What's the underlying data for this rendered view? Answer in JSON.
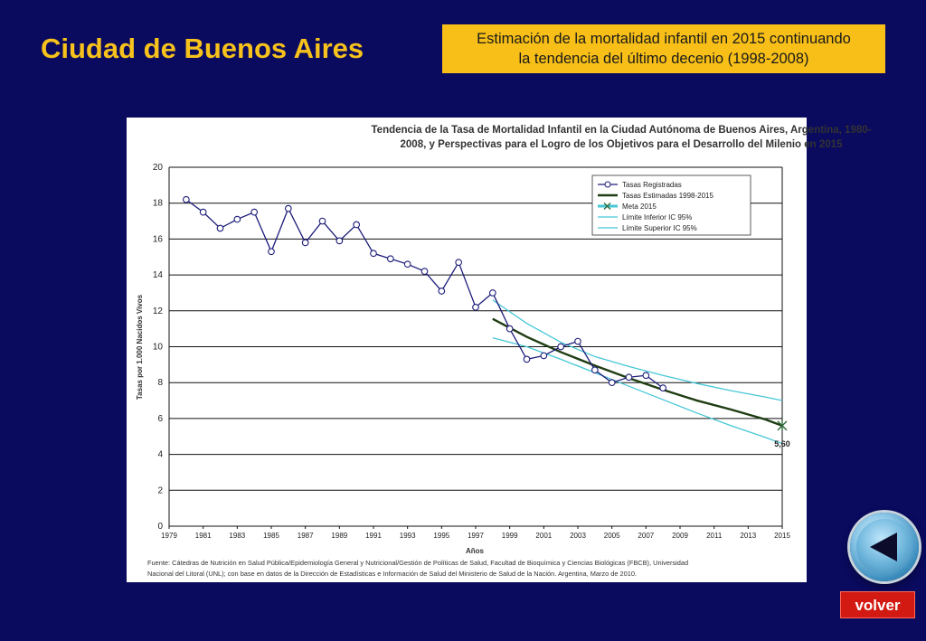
{
  "page": {
    "title": "Ciudad de Buenos Aires",
    "note_line1": "Estimación de la mortalidad infantil en 2015 continuando",
    "note_line2": "la tendencia del último decenio (1998-2008)",
    "back_icon": "triangle-left-icon",
    "volver_label": "volver",
    "colors": {
      "background": "#0a0a5e",
      "title": "#f6c21b",
      "note_bg": "#f7bf17",
      "volver_bg": "#d31a12"
    }
  },
  "chart_data": {
    "type": "line",
    "title_line1": "Tendencia de la Tasa de Mortalidad Infantil en la Ciudad Autónoma de Buenos Aires, Argentina, 1980-",
    "title_line2": "2008, y Perspectivas para el Logro de los Objetivos para el Desarrollo del Milenio en 2015",
    "xlabel": "Años",
    "ylabel": "Tasas por 1.000 Nacidos Vivos",
    "xlim": [
      1979,
      2015
    ],
    "ylim": [
      0,
      20
    ],
    "x_ticks": [
      "1979",
      "1981",
      "1983",
      "1985",
      "1987",
      "1989",
      "1991",
      "1993",
      "1995",
      "1997",
      "1999",
      "2001",
      "2003",
      "2005",
      "2007",
      "2009",
      "2011",
      "2013",
      "2015"
    ],
    "y_ticks": [
      "0",
      "2",
      "4",
      "6",
      "8",
      "10",
      "12",
      "14",
      "16",
      "18",
      "20"
    ],
    "grid": true,
    "legend_position": "top-right",
    "series": [
      {
        "name": "Tasas Registradas",
        "color": "#1c1c7a",
        "x": [
          1980,
          1981,
          1982,
          1983,
          1984,
          1985,
          1986,
          1987,
          1988,
          1989,
          1990,
          1991,
          1992,
          1993,
          1994,
          1995,
          1996,
          1997,
          1998,
          1999,
          2000,
          2001,
          2002,
          2003,
          2004,
          2005,
          2006,
          2007,
          2008
        ],
        "y": [
          18.2,
          17.5,
          16.6,
          17.1,
          17.5,
          15.3,
          17.7,
          15.8,
          17.0,
          15.9,
          16.8,
          15.2,
          14.9,
          14.6,
          14.2,
          13.1,
          14.7,
          12.2,
          13.0,
          11.0,
          9.3,
          9.5,
          10.0,
          10.3,
          8.7,
          8.0,
          8.3,
          8.4,
          7.7
        ]
      },
      {
        "name": "Tasas Estimadas 1998-2015",
        "color": "#1f3d12",
        "x": [
          1998,
          2000,
          2002,
          2004,
          2006,
          2008,
          2010,
          2012,
          2014,
          2015
        ],
        "y": [
          11.55,
          10.55,
          9.7,
          8.95,
          8.25,
          7.6,
          7.0,
          6.5,
          5.95,
          5.6
        ]
      },
      {
        "name": "Meta 2015",
        "color": "#2e6b3a",
        "x": [
          2015
        ],
        "y": [
          5.6
        ]
      },
      {
        "name": "Límite Inferior IC 95%",
        "color": "#46c7d6",
        "x": [
          1998,
          2000,
          2002,
          2004,
          2006,
          2008,
          2010,
          2012,
          2014,
          2015
        ],
        "y": [
          10.5,
          10.0,
          9.3,
          8.55,
          7.8,
          7.05,
          6.3,
          5.6,
          4.95,
          4.6
        ]
      },
      {
        "name": "Límite Superior IC 95%",
        "color": "#46c7d6",
        "x": [
          1998,
          2000,
          2002,
          2004,
          2006,
          2008,
          2010,
          2012,
          2014,
          2015
        ],
        "y": [
          12.6,
          11.3,
          10.25,
          9.45,
          8.9,
          8.4,
          7.95,
          7.55,
          7.2,
          7.0
        ]
      }
    ],
    "annotation": "5,60",
    "source_line1": "Fuente: Cátedras de Nutrición en Salud Pública/Epidemiología General y Nutricional/Gestión de Políticas de Salud, Facultad de Bioquímica y Ciencias Biológicas (FBCB), Universidad",
    "source_line2": "Nacional del Litoral (UNL); con base en datos de la Dirección de Estadísticas e Información de Salud del Ministerio de Salud de la Nación. Argentina, Marzo de 2010."
  }
}
